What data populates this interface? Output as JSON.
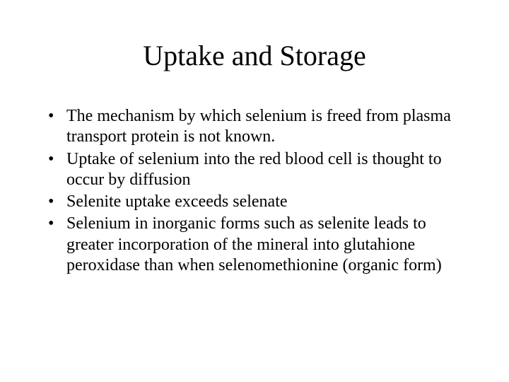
{
  "slide": {
    "title": "Uptake and Storage",
    "bullets": [
      "The mechanism by which selenium is freed from plasma transport protein is not known.",
      "Uptake of selenium into the red blood cell is thought to occur by diffusion",
      "Selenite uptake exceeds selenate",
      "Selenium in inorganic forms such as selenite leads to greater incorporation of the mineral into glutahione peroxidase than when selenomethionine (organic form)"
    ],
    "styling": {
      "background_color": "#ffffff",
      "text_color": "#000000",
      "font_family": "Times New Roman",
      "title_fontsize": 40,
      "body_fontsize": 24,
      "title_weight": "normal",
      "title_align": "center"
    }
  }
}
